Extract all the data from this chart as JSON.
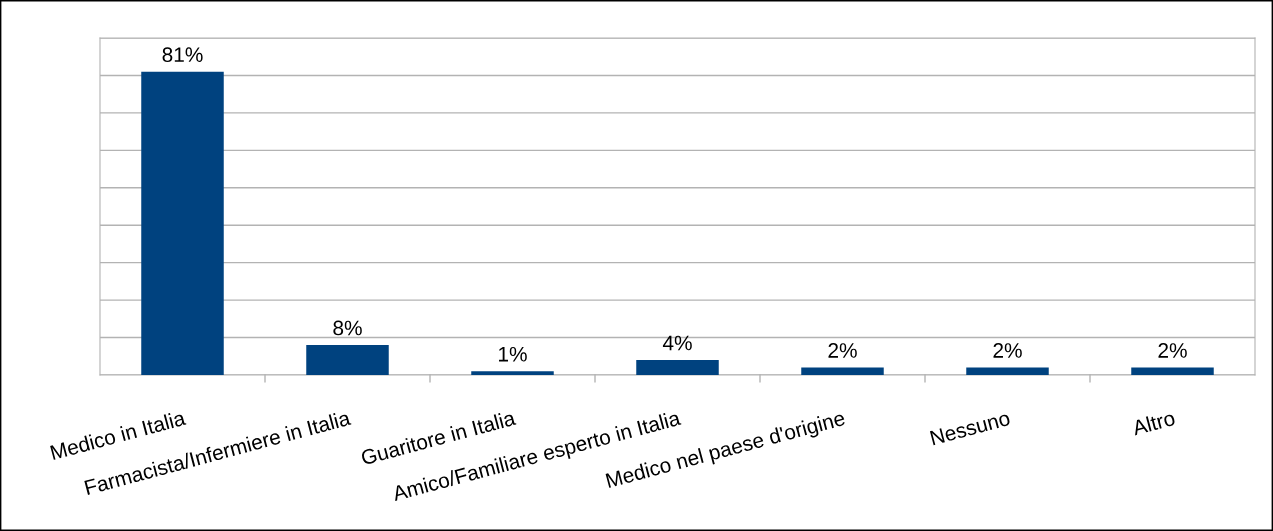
{
  "chart_data": {
    "type": "bar",
    "categories": [
      "Medico in Italia",
      "Farmacista/Infermiere in Italia",
      "Guaritore in Italia",
      "Amico/Familiare esperto in Italia",
      "Medico nel paese d'origine",
      "Nessuno",
      "Altro"
    ],
    "values": [
      81,
      8,
      1,
      4,
      2,
      2,
      2
    ],
    "value_labels": [
      "81%",
      "8%",
      "1%",
      "4%",
      "2%",
      "2%",
      "2%"
    ],
    "color": "#00427f",
    "ylim": [
      0,
      90
    ],
    "yticks": [
      {
        "value": 0,
        "label": null
      },
      {
        "value": 10,
        "label": null
      },
      {
        "value": 20,
        "label": null
      },
      {
        "value": 30,
        "label": null
      },
      {
        "value": 40,
        "label": null
      },
      {
        "value": 50,
        "label": null
      },
      {
        "value": 60,
        "label": null
      },
      {
        "value": 70,
        "label": null
      },
      {
        "value": 80,
        "label": null
      },
      {
        "value": 90,
        "label": null
      }
    ],
    "grid": "y",
    "legend": false
  }
}
